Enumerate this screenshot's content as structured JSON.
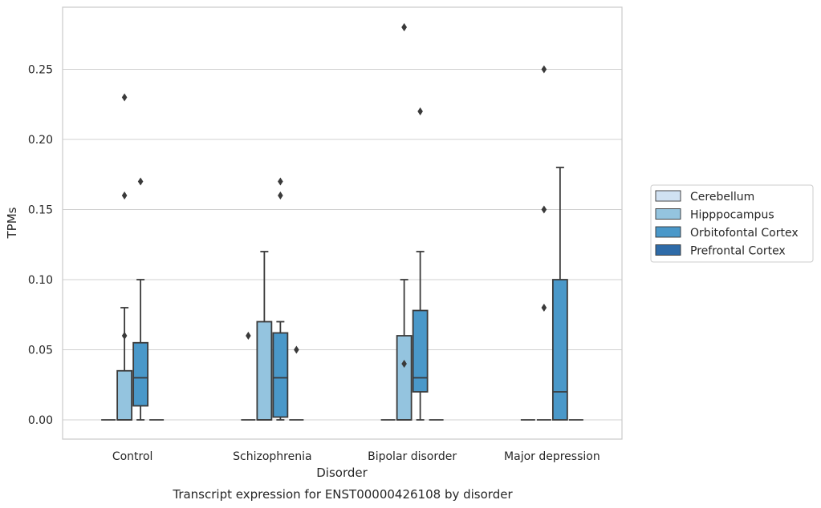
{
  "chart_data": {
    "type": "box",
    "caption": "Transcript expression for ENST00000426108 by disorder",
    "xlabel": "Disorder",
    "ylabel": "TPMs",
    "ylim": [
      -0.014,
      0.295
    ],
    "yticks": [
      0.0,
      0.05,
      0.1,
      0.15,
      0.2,
      0.25
    ],
    "ytick_labels": [
      "0.00",
      "0.05",
      "0.10",
      "0.15",
      "0.20",
      "0.25"
    ],
    "grid": "horizontal",
    "legend_position": "right",
    "categories": [
      "Control",
      "Schizophrenia",
      "Bipolar disorder",
      "Major depression"
    ],
    "series": [
      {
        "name": "Cerebellum",
        "color": "#d0e1f2",
        "boxes": [
          {
            "category": "Control",
            "whisker_low": 0.0,
            "q1": 0.0,
            "median": 0.0,
            "q3": 0.0,
            "whisker_high": 0.0,
            "outliers": []
          },
          {
            "category": "Schizophrenia",
            "whisker_low": 0.0,
            "q1": 0.0,
            "median": 0.0,
            "q3": 0.0,
            "whisker_high": 0.0,
            "outliers": [
              0.06
            ]
          },
          {
            "category": "Bipolar disorder",
            "whisker_low": 0.0,
            "q1": 0.0,
            "median": 0.0,
            "q3": 0.0,
            "whisker_high": 0.0,
            "outliers": []
          },
          {
            "category": "Major depression",
            "whisker_low": 0.0,
            "q1": 0.0,
            "median": 0.0,
            "q3": 0.0,
            "whisker_high": 0.0,
            "outliers": []
          }
        ]
      },
      {
        "name": "Hipppocampus",
        "color": "#94c4df",
        "boxes": [
          {
            "category": "Control",
            "whisker_low": 0.0,
            "q1": 0.0,
            "median": 0.0,
            "q3": 0.035,
            "whisker_high": 0.08,
            "outliers": [
              0.06,
              0.16,
              0.23
            ]
          },
          {
            "category": "Schizophrenia",
            "whisker_low": 0.0,
            "q1": 0.0,
            "median": 0.0,
            "q3": 0.07,
            "whisker_high": 0.12,
            "outliers": []
          },
          {
            "category": "Bipolar disorder",
            "whisker_low": 0.0,
            "q1": 0.0,
            "median": 0.0,
            "q3": 0.06,
            "whisker_high": 0.1,
            "outliers": [
              0.04,
              0.28,
              0.28
            ]
          },
          {
            "category": "Major depression",
            "whisker_low": 0.0,
            "q1": 0.0,
            "median": 0.0,
            "q3": 0.0,
            "whisker_high": 0.0,
            "outliers": [
              0.08,
              0.15,
              0.25
            ]
          }
        ]
      },
      {
        "name": "Orbitofontal Cortex",
        "color": "#4a98c9",
        "boxes": [
          {
            "category": "Control",
            "whisker_low": 0.0,
            "q1": 0.01,
            "median": 0.03,
            "q3": 0.055,
            "whisker_high": 0.1,
            "outliers": [
              0.17
            ]
          },
          {
            "category": "Schizophrenia",
            "whisker_low": 0.0,
            "q1": 0.002,
            "median": 0.03,
            "q3": 0.062,
            "whisker_high": 0.07,
            "outliers": [
              0.16,
              0.17
            ]
          },
          {
            "category": "Bipolar disorder",
            "whisker_low": 0.0,
            "q1": 0.02,
            "median": 0.03,
            "q3": 0.078,
            "whisker_high": 0.12,
            "outliers": [
              0.22
            ]
          },
          {
            "category": "Major depression",
            "whisker_low": 0.0,
            "q1": 0.0,
            "median": 0.02,
            "q3": 0.1,
            "whisker_high": 0.18,
            "outliers": []
          }
        ]
      },
      {
        "name": "Prefrontal Cortex",
        "color": "#2e6ba8",
        "boxes": [
          {
            "category": "Control",
            "whisker_low": 0.0,
            "q1": 0.0,
            "median": 0.0,
            "q3": 0.0,
            "whisker_high": 0.0,
            "outliers": []
          },
          {
            "category": "Schizophrenia",
            "whisker_low": 0.0,
            "q1": 0.0,
            "median": 0.0,
            "q3": 0.0,
            "whisker_high": 0.0,
            "outliers": [
              0.05
            ]
          },
          {
            "category": "Bipolar disorder",
            "whisker_low": 0.0,
            "q1": 0.0,
            "median": 0.0,
            "q3": 0.0,
            "whisker_high": 0.0,
            "outliers": []
          },
          {
            "category": "Major depression",
            "whisker_low": 0.0,
            "q1": 0.0,
            "median": 0.0,
            "q3": 0.0,
            "whisker_high": 0.0,
            "outliers": []
          }
        ]
      }
    ]
  }
}
